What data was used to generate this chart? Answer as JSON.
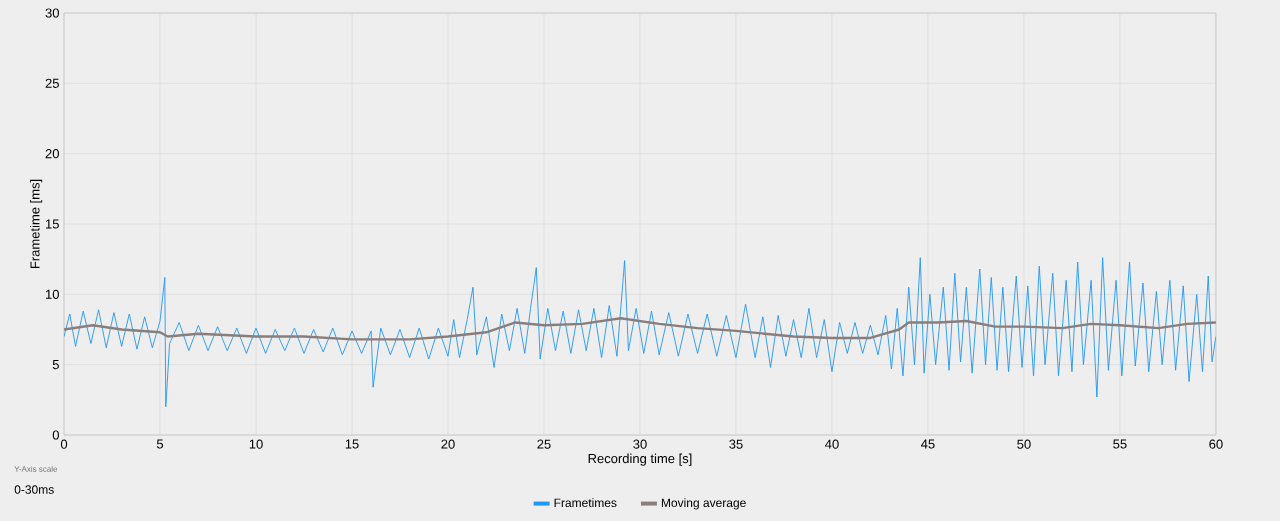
{
  "chart_data": {
    "type": "line",
    "xlabel": "Recording time [s]",
    "ylabel": "Frametime [ms]",
    "xlim": [
      0,
      60
    ],
    "ylim": [
      0,
      30
    ],
    "xticks": [
      0,
      5,
      10,
      15,
      20,
      25,
      30,
      35,
      40,
      45,
      50,
      55,
      60
    ],
    "yticks": [
      0,
      5,
      10,
      15,
      20,
      25,
      30
    ],
    "grid": true,
    "legend": "bottom",
    "marker": "none",
    "line_style": "solid",
    "annotations": [
      "Y-Axis scale",
      "0-30ms"
    ],
    "series": [
      {
        "name": "Frametimes",
        "color": "#2196f3",
        "x": [
          0,
          0.3,
          0.6,
          1.0,
          1.4,
          1.8,
          2.2,
          2.6,
          3.0,
          3.4,
          3.8,
          4.2,
          4.6,
          5.0,
          5.25,
          5.3,
          5.5,
          6.0,
          6.5,
          7.0,
          7.5,
          8.0,
          8.5,
          9.0,
          9.5,
          10.0,
          10.5,
          11.0,
          11.5,
          12.0,
          12.5,
          13.0,
          13.5,
          14.0,
          14.5,
          15.0,
          15.5,
          16.0,
          16.1,
          16.5,
          17.0,
          17.5,
          18.0,
          18.5,
          19.0,
          19.5,
          20.0,
          20.3,
          20.6,
          21.0,
          21.3,
          21.5,
          22.0,
          22.4,
          22.8,
          23.2,
          23.6,
          24.0,
          24.3,
          24.6,
          24.8,
          25.2,
          25.6,
          26.0,
          26.4,
          26.8,
          27.2,
          27.6,
          28.0,
          28.4,
          28.8,
          29.2,
          29.4,
          29.8,
          30.2,
          30.6,
          31.0,
          31.5,
          32.0,
          32.5,
          33.0,
          33.5,
          34.0,
          34.5,
          35.0,
          35.5,
          36.0,
          36.4,
          36.8,
          37.2,
          37.6,
          38.0,
          38.4,
          38.8,
          39.2,
          39.6,
          40.0,
          40.4,
          40.8,
          41.2,
          41.6,
          42.0,
          42.4,
          42.8,
          43.1,
          43.4,
          43.7,
          44.0,
          44.3,
          44.6,
          44.8,
          45.1,
          45.4,
          45.8,
          46.1,
          46.4,
          46.7,
          47.0,
          47.3,
          47.7,
          48.0,
          48.3,
          48.6,
          48.9,
          49.2,
          49.6,
          49.9,
          50.2,
          50.5,
          50.8,
          51.1,
          51.5,
          51.8,
          52.2,
          52.5,
          52.8,
          53.1,
          53.5,
          53.8,
          54.1,
          54.4,
          54.8,
          55.1,
          55.5,
          55.8,
          56.2,
          56.5,
          56.9,
          57.2,
          57.6,
          57.9,
          58.3,
          58.6,
          59.0,
          59.3,
          59.6,
          59.8,
          60.0
        ],
        "values": [
          7.0,
          8.6,
          6.3,
          8.8,
          6.5,
          8.9,
          6.2,
          8.7,
          6.3,
          8.6,
          6.1,
          8.4,
          6.2,
          8.1,
          11.2,
          2.0,
          6.5,
          8.0,
          6.0,
          7.8,
          6.0,
          7.7,
          6.0,
          7.6,
          5.8,
          7.6,
          5.8,
          7.5,
          6.0,
          7.6,
          5.8,
          7.5,
          5.9,
          7.6,
          5.7,
          7.4,
          5.8,
          7.4,
          3.4,
          7.6,
          5.7,
          7.5,
          5.5,
          7.6,
          5.4,
          7.6,
          5.6,
          8.2,
          5.5,
          8.2,
          10.5,
          5.7,
          8.4,
          4.8,
          8.6,
          6.0,
          9.0,
          5.8,
          9.0,
          11.9,
          5.4,
          9.0,
          6.0,
          8.8,
          5.8,
          8.9,
          6.0,
          9.0,
          5.5,
          9.2,
          5.6,
          12.4,
          6.0,
          9.0,
          5.8,
          8.8,
          5.7,
          8.7,
          5.6,
          8.6,
          5.8,
          8.6,
          5.6,
          8.5,
          5.5,
          9.3,
          5.5,
          8.4,
          4.8,
          8.5,
          5.6,
          8.2,
          5.5,
          9.0,
          5.5,
          8.2,
          4.5,
          8.0,
          5.8,
          8.0,
          5.8,
          7.8,
          5.7,
          8.5,
          4.7,
          9.0,
          4.2,
          10.5,
          5.0,
          12.6,
          4.4,
          10.0,
          5.0,
          10.5,
          4.6,
          11.5,
          5.2,
          10.5,
          4.4,
          11.8,
          5.0,
          11.2,
          4.6,
          10.5,
          4.5,
          11.3,
          4.8,
          10.6,
          4.2,
          12.0,
          5.0,
          11.5,
          4.2,
          11.0,
          4.5,
          12.3,
          5.0,
          11.0,
          2.7,
          12.6,
          4.6,
          11.0,
          4.2,
          12.3,
          4.9,
          10.8,
          4.5,
          10.2,
          5.0,
          11.0,
          4.6,
          10.6,
          3.8,
          10.0,
          4.5,
          11.3,
          5.2,
          7.0
        ]
      },
      {
        "name": "Moving average",
        "color": "#8a7e7b",
        "x": [
          0,
          1.5,
          3,
          5,
          5.4,
          7,
          10,
          12.5,
          15,
          18,
          20,
          22,
          23.5,
          25,
          27,
          29,
          31,
          33,
          35,
          38,
          40,
          42,
          43.5,
          44,
          45.5,
          47,
          48.5,
          50,
          52,
          53.5,
          55,
          57,
          58.5,
          60
        ],
        "values": [
          7.5,
          7.8,
          7.5,
          7.3,
          7.0,
          7.2,
          7.0,
          7.0,
          6.8,
          6.8,
          7.0,
          7.3,
          8.0,
          7.8,
          7.9,
          8.3,
          7.9,
          7.6,
          7.4,
          7.0,
          6.9,
          6.9,
          7.5,
          8.0,
          8.0,
          8.1,
          7.7,
          7.7,
          7.6,
          7.9,
          7.8,
          7.6,
          7.9,
          8.0
        ]
      }
    ]
  }
}
